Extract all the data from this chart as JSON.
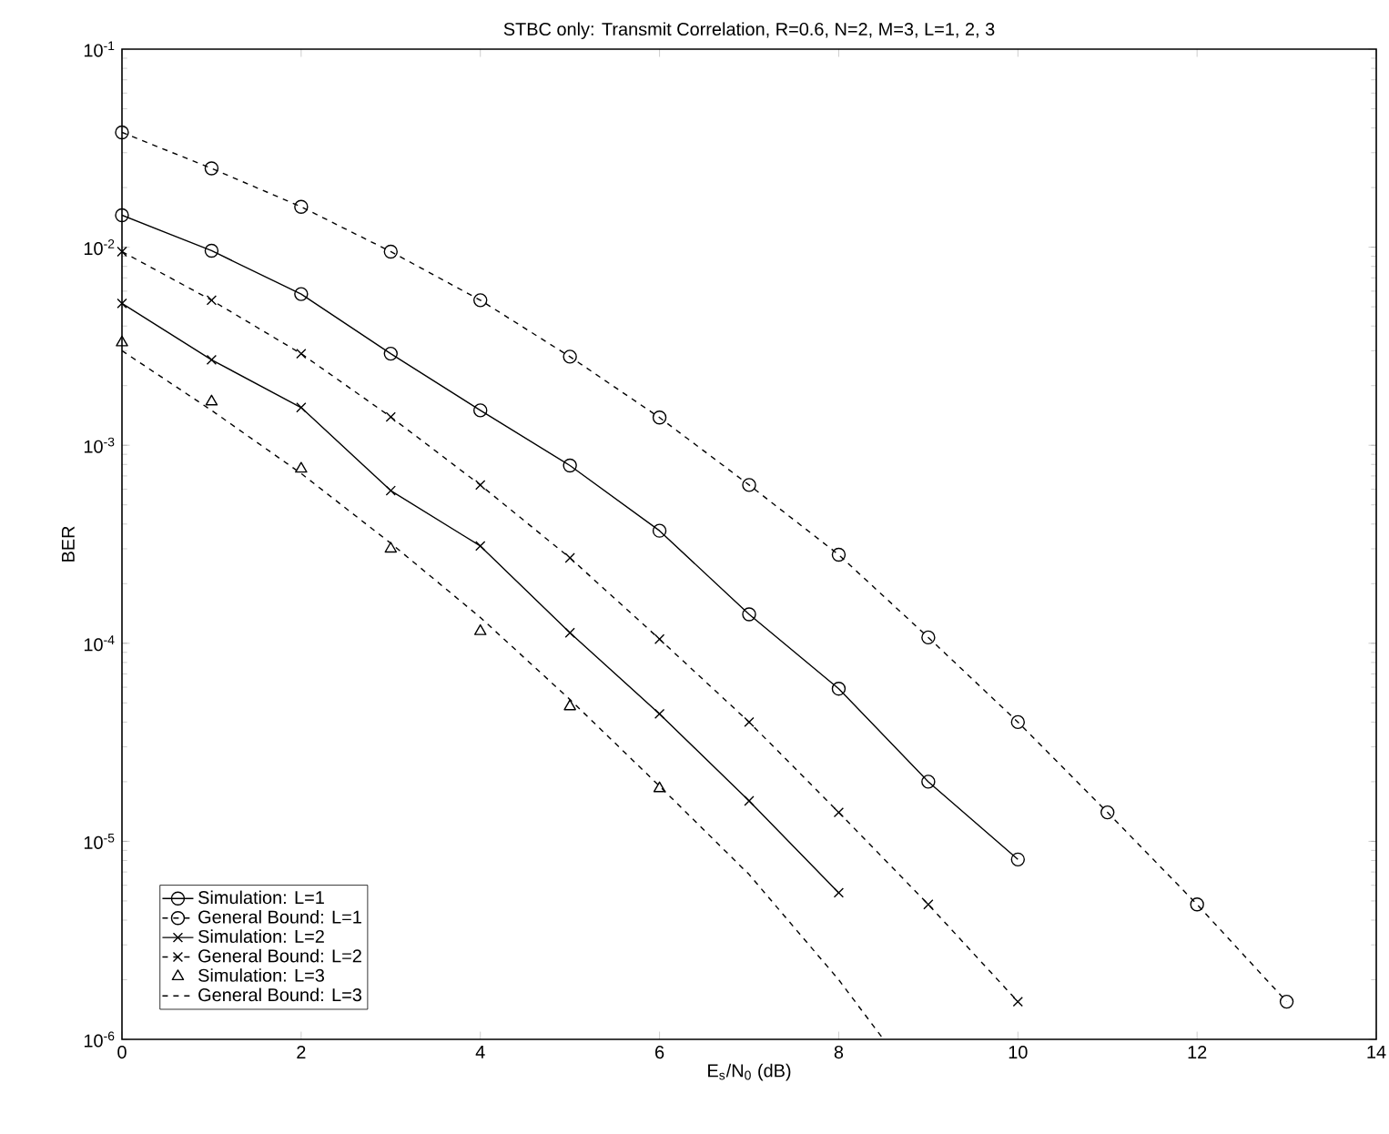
{
  "chart_data": {
    "type": "line",
    "title": "STBC only: Transmit Correlation, R=0.6, N=2, M=3, L=1, 2, 3",
    "xlabel": "E$_{s}$/N$_{0}$ (dB)",
    "ylabel": "BER",
    "xlim": [
      0,
      14
    ],
    "xticks": [
      0,
      2,
      4,
      6,
      8,
      10,
      12,
      14
    ],
    "ylim": [
      1e-06,
      0.1
    ],
    "yticks": [
      {
        "value": 1e-06,
        "label": "10$^{-6}$"
      },
      {
        "value": 1e-05,
        "label": "10$^{-5}$"
      },
      {
        "value": 0.0001,
        "label": "10$^{-4}$"
      },
      {
        "value": 0.001,
        "label": "10$^{-3}$"
      },
      {
        "value": 0.01,
        "label": "10$^{-2}$"
      },
      {
        "value": 0.1,
        "label": "10$^{-1}$"
      }
    ],
    "log": "y",
    "legend": "bottom left",
    "series": [
      {
        "name": "Simulation: L=1",
        "color": "#000000",
        "marker": "circle",
        "line_style": "solid",
        "x": [
          0,
          1,
          2,
          3,
          4,
          5,
          6,
          7,
          8,
          9,
          10
        ],
        "values": [
          0.0145,
          0.0096,
          0.0058,
          0.0029,
          0.0015,
          0.00079,
          0.00037,
          0.00014,
          5.9e-05,
          2e-05,
          8.1e-06
        ]
      },
      {
        "name": "General Bound: L=1",
        "color": "#000000",
        "marker": "circle",
        "line_style": "dashed",
        "x": [
          0,
          1,
          2,
          3,
          4,
          5,
          6,
          7,
          8,
          9,
          10,
          11,
          12,
          13
        ],
        "values": [
          0.038,
          0.025,
          0.016,
          0.0095,
          0.0054,
          0.0028,
          0.00138,
          0.00063,
          0.00028,
          0.000107,
          4e-05,
          1.4e-05,
          4.8e-06,
          1.55e-06
        ]
      },
      {
        "name": "Simulation: L=2",
        "color": "#000000",
        "marker": "cross",
        "line_style": "solid",
        "x": [
          0,
          1,
          2,
          3,
          4,
          5,
          6,
          7,
          8
        ],
        "values": [
          0.0052,
          0.0027,
          0.00155,
          0.00059,
          0.00031,
          0.000113,
          4.4e-05,
          1.6e-05,
          5.5e-06
        ]
      },
      {
        "name": "General Bound: L=2",
        "color": "#000000",
        "marker": "cross",
        "line_style": "dashed",
        "x": [
          0,
          1,
          2,
          3,
          4,
          5,
          6,
          7,
          8,
          9,
          10
        ],
        "values": [
          0.0095,
          0.0054,
          0.0029,
          0.00139,
          0.00063,
          0.00027,
          0.000105,
          4e-05,
          1.4e-05,
          4.8e-06,
          1.55e-06
        ]
      },
      {
        "name": "Simulation: L=3",
        "type": "scatter",
        "color": "#000000",
        "marker": "triangle",
        "x": [
          0,
          1,
          2,
          3,
          4,
          5,
          6
        ],
        "values": [
          0.0033,
          0.00166,
          0.00076,
          0.0003,
          0.000115,
          4.8e-05,
          1.85e-05
        ]
      },
      {
        "name": "General Bound: L=3",
        "color": "#000000",
        "marker": "none",
        "line_style": "dashed",
        "x": [
          0,
          1,
          2,
          3,
          4,
          5,
          6,
          7,
          8,
          8.5
        ],
        "values": [
          0.003,
          0.0015,
          0.00072,
          0.00032,
          0.000135,
          5.2e-05,
          1.9e-05,
          6.8e-06,
          2e-06,
          1e-06
        ]
      }
    ]
  }
}
